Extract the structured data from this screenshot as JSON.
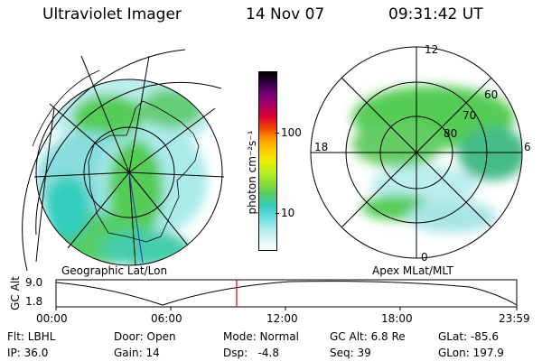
{
  "header": {
    "instrument": "Ultraviolet Imager",
    "date": "14 Nov 07",
    "time": "09:31:42 UT"
  },
  "left_map": {
    "caption": "Geographic Lat/Lon"
  },
  "right_map": {
    "caption": "Apex MLat/MLT",
    "mlt_labels": [
      "12",
      "18",
      "6",
      "0"
    ],
    "lat_labels": [
      "60",
      "70",
      "80"
    ]
  },
  "colorbar": {
    "unit_label": "photon cm⁻²s⁻¹",
    "ticks": [
      "100",
      "10"
    ],
    "colors": [
      "#ffffff",
      "#d9f5f5",
      "#a8ebee",
      "#66dddd",
      "#33ccbb",
      "#55cc66",
      "#88dd33",
      "#bbee22",
      "#eeee00",
      "#ffcc00",
      "#ff9900",
      "#ee4400",
      "#dd0033",
      "#aa0066",
      "#770077",
      "#330044",
      "#000000"
    ]
  },
  "altitude_plot": {
    "ylabel": "GC Alt",
    "yticks": [
      "9.0",
      "1.8"
    ],
    "xticks": [
      "00:00",
      "06:00",
      "12:00",
      "18:00",
      "23:59"
    ],
    "marker_color": "#dd0000"
  },
  "status": {
    "flt": "Flt: LBHL",
    "ip": "IP: 36.0",
    "door": "Door: Open",
    "gain": "Gain: 14",
    "mode": "Mode: Normal",
    "dsp": "Dsp:   -4.8",
    "gc_alt": "GC Alt: 6.8 Re",
    "seq": "Seq: 39",
    "glat": "GLat: -85.6",
    "glon": "GLon: 197.9"
  },
  "colors": {
    "aurora_green": "#55cc55",
    "light_cyan": "#bbeeee",
    "cyan": "#77dddd",
    "teal": "#33ccbb"
  }
}
